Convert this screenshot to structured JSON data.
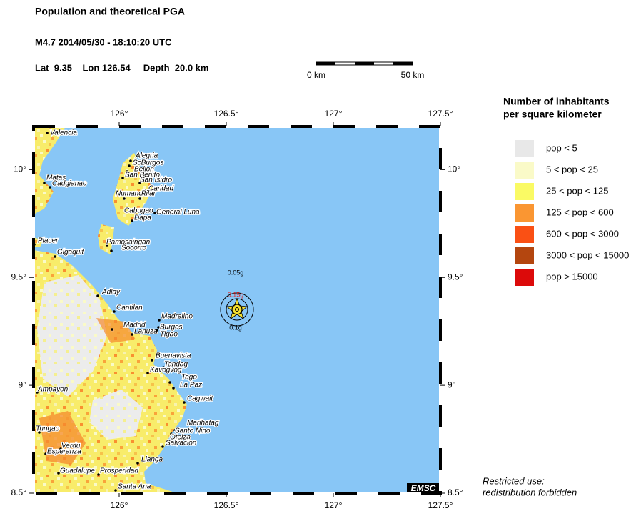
{
  "header": {
    "title": "Population and theoretical PGA",
    "event": "M4.7  2014/05/30 - 18:10:20 UTC",
    "location": "Lat  9.35    Lon 126.54     Depth  20.0 km"
  },
  "scale_bar": {
    "start_label": "0 km",
    "end_label": "50 km"
  },
  "map": {
    "xlim": [
      125.6,
      127.5
    ],
    "ylim": [
      8.5,
      10.2
    ],
    "xticks": [
      {
        "value": 126,
        "label": "126°"
      },
      {
        "value": 126.5,
        "label": "126.5°"
      },
      {
        "value": 127,
        "label": "127°"
      },
      {
        "value": 127.5,
        "label": "127.5°"
      }
    ],
    "yticks": [
      {
        "value": 8.5,
        "label": "8.5°"
      },
      {
        "value": 9,
        "label": "9°"
      },
      {
        "value": 9.5,
        "label": "9.5°"
      },
      {
        "value": 10,
        "label": "10°"
      }
    ],
    "pga_labels": [
      "0.05g",
      "0.15g",
      "0.1g"
    ],
    "cities": [
      "Valencia",
      "Matas",
      "Cadgianao",
      "Alegria",
      "ScBurgos",
      "Bellon",
      "San Benito",
      "San Isidro",
      "Caridad",
      "Numancia",
      "Pilar",
      "Cabugao",
      "General Luna",
      "Dapa",
      "Pamosaingan",
      "Socorro",
      "Placer",
      "Gigaquit",
      "Adlay",
      "Cantilan",
      "Madrid",
      "Lanuza",
      "Tigao",
      "Madrelino",
      "Burgos",
      "Buenavista",
      "Tandag",
      "Kavogvog",
      "Tago",
      "La Paz",
      "Cagwait",
      "Ampayon",
      "Marihatag",
      "Santo Nino",
      "Oteiza",
      "Salvacion",
      "Tungao",
      "Verdu",
      "Esperanza",
      "Guadalupe",
      "Prosperidad",
      "Llanga",
      "Santa Ana"
    ],
    "logo": "EMSC"
  },
  "legend": {
    "title_lines": [
      "Number of inhabitants",
      "per square kilometer"
    ],
    "entries": [
      {
        "label": "pop < 5",
        "color": "#e8e8e8"
      },
      {
        "label": "5 < pop < 25",
        "color": "#fafac8"
      },
      {
        "label": "25 < pop < 125",
        "color": "#fafa64"
      },
      {
        "label": "125 < pop < 600",
        "color": "#fa9632"
      },
      {
        "label": "600 < pop < 3000",
        "color": "#fa5014"
      },
      {
        "label": "3000 < pop < 15000",
        "color": "#b4460f"
      },
      {
        "label": "pop > 15000",
        "color": "#dc0a0a"
      }
    ]
  },
  "footer": [
    "Restricted use:",
    "redistribution forbidden"
  ]
}
